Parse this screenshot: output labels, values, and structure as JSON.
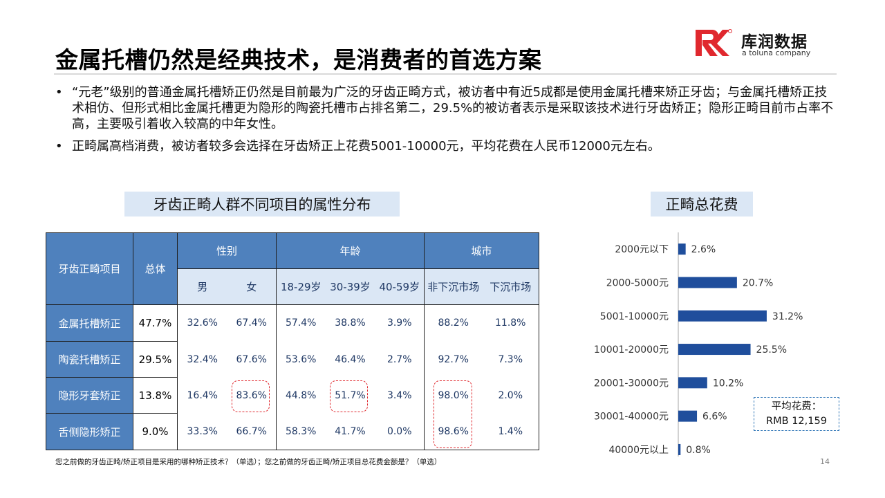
{
  "header": {
    "title": "金属托槽仍然是经典技术，是消费者的首选方案",
    "logo_cn": "库润数据",
    "logo_en": "a toluna company"
  },
  "bullets": [
    "“元老”级别的普通金属托槽矫正仍然是目前最为广泛的牙齿正畸方式，被访者中有近5成都是使用金属托槽来矫正牙齿；与金属托槽矫正技术相仿、但形式相比金属托槽更为隐形的陶瓷托槽市占排名第二，29.5%的被访者表示是采取该技术进行牙齿矫正；隐形正畸目前市占率不高，主要吸引着收入较高的中年女性。",
    "正畸属高档消费，被访者较多会选择在牙齿矫正上花费5001-10000元，平均花费在人民币12000元左右。"
  ],
  "bullet_marker": "•",
  "table_section": {
    "title": "牙齿正畸人群不同项目的属性分布",
    "corner_label": "牙齿正畸项目",
    "total_label": "总体",
    "groups": [
      {
        "label": "性别",
        "cols": [
          "男",
          "女"
        ]
      },
      {
        "label": "年龄",
        "cols": [
          "18-29岁",
          "30-39岁",
          "40-59岁"
        ]
      },
      {
        "label": "城市",
        "cols": [
          "非下沉市场",
          "下沉市场"
        ]
      }
    ],
    "rows": [
      {
        "label": "金属托槽矫正",
        "total": "47.7%",
        "cells": [
          "32.6%",
          "67.4%",
          "57.4%",
          "38.8%",
          "3.9%",
          "88.2%",
          "11.8%"
        ]
      },
      {
        "label": "陶瓷托槽矫正",
        "total": "29.5%",
        "cells": [
          "32.4%",
          "67.6%",
          "53.6%",
          "46.4%",
          "2.7%",
          "92.7%",
          "7.3%"
        ]
      },
      {
        "label": "隐形牙套矫正",
        "total": "13.8%",
        "cells": [
          "16.4%",
          "83.6%",
          "44.8%",
          "51.7%",
          "3.4%",
          "98.0%",
          "2.0%"
        ]
      },
      {
        "label": "舌侧隐形矫正",
        "total": "9.0%",
        "cells": [
          "33.3%",
          "66.7%",
          "58.3%",
          "41.7%",
          "0.0%",
          "98.6%",
          "1.4%"
        ]
      }
    ]
  },
  "chart_section": {
    "title": "正畸总花费"
  },
  "chart_data": {
    "type": "bar",
    "orientation": "horizontal",
    "title": "正畸总花费",
    "categories": [
      "2000元以下",
      "2000-5000元",
      "5001-10000元",
      "10001-20000元",
      "20001-30000元",
      "30001-40000元",
      "40000元以上"
    ],
    "values": [
      2.6,
      20.7,
      31.2,
      25.5,
      10.2,
      6.6,
      0.8
    ],
    "value_labels": [
      "2.6%",
      "20.7%",
      "31.2%",
      "25.5%",
      "10.2%",
      "6.6%",
      "0.8%"
    ],
    "unit": "%",
    "xlim": [
      0,
      45
    ],
    "bar_color": "#1f4e9c",
    "gridlines": false,
    "legend": "none"
  },
  "annotation": {
    "line1": "平均花费：",
    "line2": "RMB 12,159"
  },
  "footnote": "您之前做的牙齿正畸/矫正项目是采用的哪种矫正技术？（单选）；您之前做的牙齿正畸/矫正项目总花费金额是？（单选）",
  "page_number": "14",
  "colors": {
    "header_blue": "#4f81bd",
    "light_blue": "#dbe7f5",
    "highlight_red": "#e0282e",
    "logo_red": "#e0282e"
  }
}
